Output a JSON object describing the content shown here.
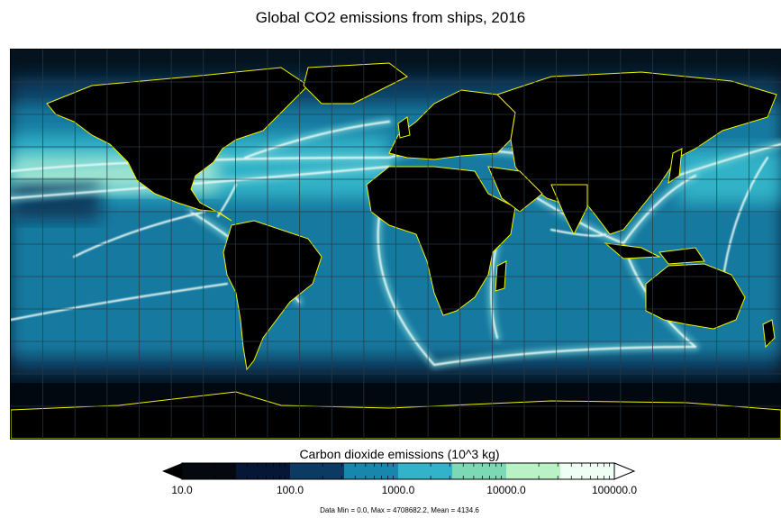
{
  "title": "Global CO2 emissions from ships, 2016",
  "map": {
    "projection": "cylindrical equidistant",
    "grid": true,
    "coastline_color": "#f2f200",
    "ocean_colors": {
      "shipping_lanes": "#e8fbf6",
      "dense": "#9be3cf",
      "moderate": "#33b2c8",
      "sparse": "#137aa0",
      "very_sparse": "#0b3d60",
      "empty": "#05131f"
    }
  },
  "colorbar": {
    "label": "Carbon dioxide emissions (10^3 kg)",
    "scale": "log",
    "colors": [
      "#05080f",
      "#061636",
      "#0b3a62",
      "#1887ad",
      "#32b3c9",
      "#7dd8b5",
      "#b9f2c4",
      "#effff5"
    ],
    "extend_colors": {
      "low": "#000000",
      "high": "#ffffff"
    },
    "ticks": [
      "10.0",
      "100.0",
      "1000.0",
      "10000.0",
      "100000.0"
    ]
  },
  "stats": "Data Min = 0.0, Max = 4708682.2, Mean = 4134.6"
}
